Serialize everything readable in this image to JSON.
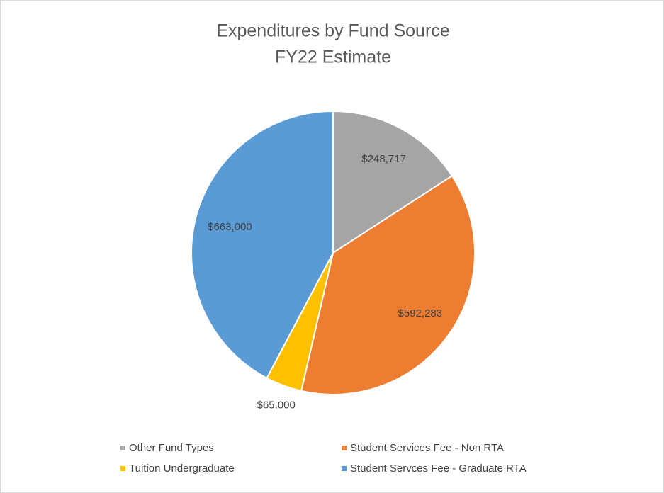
{
  "chart_data": {
    "type": "pie",
    "title": "Expenditures by Fund Source",
    "subtitle": "FY22 Estimate",
    "categories": [
      "Other Fund Types",
      "Student Services Fee - Non RTA",
      "Tuition Undergraduate",
      "Student Servces Fee - Graduate RTA"
    ],
    "values": [
      248717,
      592283,
      65000,
      663000
    ],
    "value_labels": [
      "$248,717",
      "$592,283",
      "$65,000",
      "$663,000"
    ],
    "colors": [
      "#a5a5a5",
      "#ed7d31",
      "#ffc000",
      "#5b9bd5"
    ],
    "legend": "bottom"
  }
}
